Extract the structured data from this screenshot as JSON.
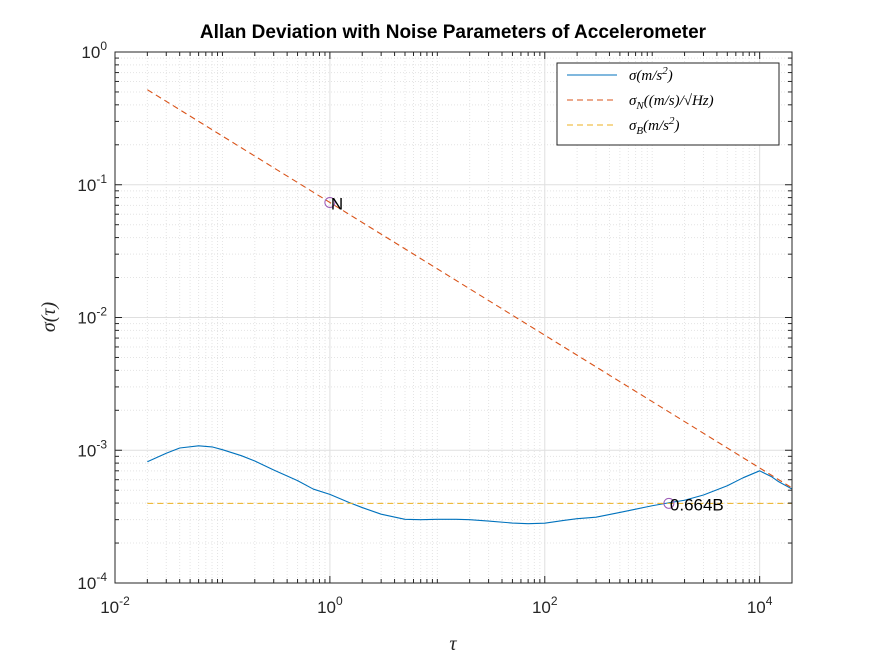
{
  "chart_data": {
    "type": "line",
    "title": "Allan Deviation with Noise Parameters of Accelerometer",
    "xlabel": "τ",
    "ylabel": "σ(τ)",
    "x_scale": "log",
    "y_scale": "log",
    "xlim": [
      0.01,
      20000
    ],
    "ylim": [
      0.0001,
      1
    ],
    "grid": true,
    "minor_grid": true,
    "legend_position": "top-right",
    "x_ticks": [
      {
        "value": 0.01,
        "base": "10",
        "exp": "-2"
      },
      {
        "value": 1,
        "base": "10",
        "exp": "0"
      },
      {
        "value": 100,
        "base": "10",
        "exp": "2"
      },
      {
        "value": 10000,
        "base": "10",
        "exp": "4"
      }
    ],
    "y_ticks": [
      {
        "value": 0.0001,
        "base": "10",
        "exp": "-4"
      },
      {
        "value": 0.001,
        "base": "10",
        "exp": "-3"
      },
      {
        "value": 0.01,
        "base": "10",
        "exp": "-2"
      },
      {
        "value": 0.1,
        "base": "10",
        "exp": "-1"
      },
      {
        "value": 1,
        "base": "10",
        "exp": "0"
      }
    ],
    "series": [
      {
        "name": "σ(m/s²)",
        "legend": {
          "base": "σ(m/s",
          "sup": "2",
          "tail": ")"
        },
        "color": "#0072bd",
        "dash": "solid",
        "x": [
          0.02,
          0.03,
          0.04,
          0.06,
          0.08,
          0.1,
          0.15,
          0.2,
          0.3,
          0.5,
          0.7,
          1.0,
          1.5,
          2.0,
          3.0,
          5.0,
          7.0,
          10,
          15,
          20,
          30,
          50,
          70,
          100,
          150,
          200,
          300,
          500,
          700,
          1000,
          1500,
          2000,
          3000,
          5000,
          7000,
          10000,
          13000,
          15000,
          20000
        ],
        "y": [
          0.00082,
          0.00095,
          0.00104,
          0.00108,
          0.00106,
          0.00101,
          0.00091,
          0.00083,
          0.00071,
          0.00059,
          0.00051,
          0.000465,
          0.000405,
          0.00037,
          0.00033,
          0.000302,
          0.0003,
          0.000302,
          0.000302,
          0.0003,
          0.000293,
          0.000283,
          0.00028,
          0.000282,
          0.000296,
          0.000305,
          0.000313,
          0.00034,
          0.00036,
          0.000382,
          0.000405,
          0.00042,
          0.00046,
          0.00054,
          0.00062,
          0.0007,
          0.00063,
          0.00058,
          0.00051
        ]
      },
      {
        "name": "σN((m/s)/√Hz)",
        "legend": {
          "base": "σ",
          "sub": "N",
          "tail": "((m/s)/√Hz)"
        },
        "color": "#d95319",
        "dash": "dashed",
        "x": [
          0.02,
          20000
        ],
        "y": [
          0.52,
          0.00052
        ]
      },
      {
        "name": "σB(m/s²)",
        "legend": {
          "base": "σ",
          "sub": "B",
          "tail": "(m/s",
          "sup": "2",
          "tail2": ")"
        },
        "color": "#edb120",
        "dash": "dashed",
        "x": [
          0.02,
          20000
        ],
        "y": [
          0.000398,
          0.000398
        ]
      }
    ],
    "annotations": [
      {
        "x": 1,
        "y": 0.0735,
        "label": "N",
        "marker_color": "#9b59b6"
      },
      {
        "x": 1430,
        "y": 0.000398,
        "label": "0.664B",
        "marker_color": "#9b59b6"
      }
    ]
  }
}
